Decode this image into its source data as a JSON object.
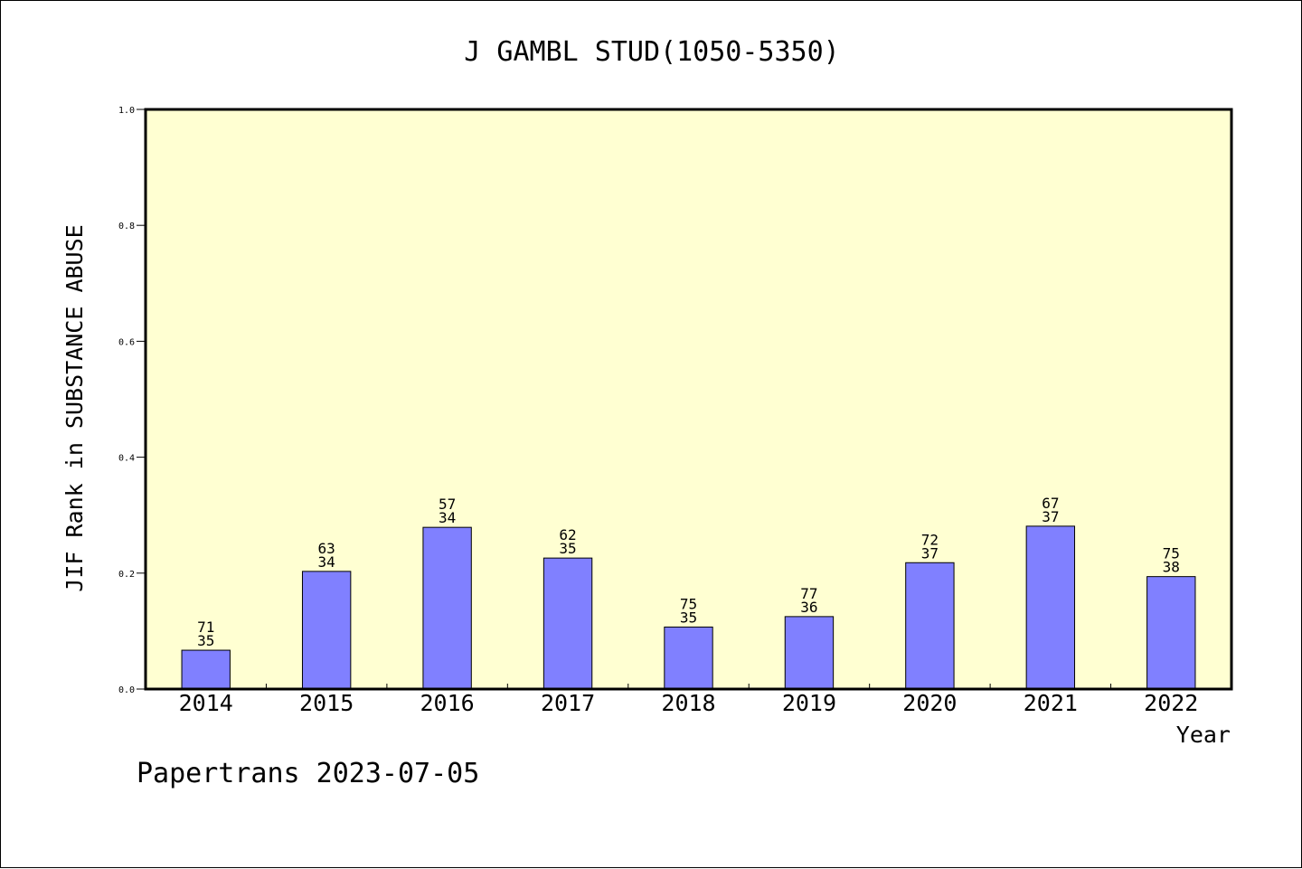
{
  "chart_data": {
    "type": "bar",
    "title": "J GAMBL STUD(1050-5350)",
    "xlabel": "Year",
    "ylabel": "JIF Rank in SUBSTANCE ABUSE",
    "ylim": [
      0,
      1.0
    ],
    "yticks": [
      "0.0",
      "0.2",
      "0.4",
      "0.6",
      "0.8",
      "1.0"
    ],
    "grid": false,
    "categories": [
      "2014",
      "2015",
      "2016",
      "2017",
      "2018",
      "2019",
      "2020",
      "2021",
      "2022"
    ],
    "values": [
      0.067,
      0.203,
      0.279,
      0.226,
      0.107,
      0.125,
      0.218,
      0.281,
      0.194
    ],
    "label_totals": [
      "71",
      "63",
      "57",
      "62",
      "75",
      "77",
      "72",
      "67",
      "75"
    ],
    "label_ranks": [
      "35",
      "34",
      "34",
      "35",
      "35",
      "36",
      "37",
      "37",
      "38"
    ],
    "colors": {
      "bar": "#8080ff",
      "plot_bg": "#ffffd2",
      "axis": "#000000"
    }
  },
  "footer": "Papertrans 2023-07-05"
}
